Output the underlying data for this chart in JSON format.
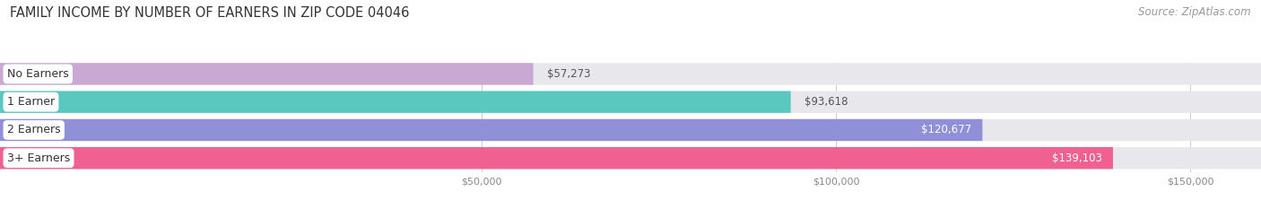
{
  "title": "FAMILY INCOME BY NUMBER OF EARNERS IN ZIP CODE 04046",
  "source": "Source: ZipAtlas.com",
  "categories": [
    "No Earners",
    "1 Earner",
    "2 Earners",
    "3+ Earners"
  ],
  "values": [
    57273,
    93618,
    120677,
    139103
  ],
  "labels": [
    "$57,273",
    "$93,618",
    "$120,677",
    "$139,103"
  ],
  "bar_colors": [
    "#c9a8d4",
    "#5bc8c0",
    "#9090d8",
    "#f06090"
  ],
  "bar_bg_color": "#e8e8ec",
  "background_color": "#ffffff",
  "label_colors": [
    "#555555",
    "#555555",
    "#ffffff",
    "#ffffff"
  ],
  "xlim_min": -18000,
  "xlim_max": 160000,
  "xticks": [
    50000,
    100000,
    150000
  ],
  "xtick_labels": [
    "$50,000",
    "$100,000",
    "$150,000"
  ],
  "title_fontsize": 10.5,
  "source_fontsize": 8.5,
  "bar_label_fontsize": 8.5,
  "category_fontsize": 9,
  "bar_height": 0.78,
  "figsize": [
    14.06,
    2.33
  ],
  "dpi": 100
}
